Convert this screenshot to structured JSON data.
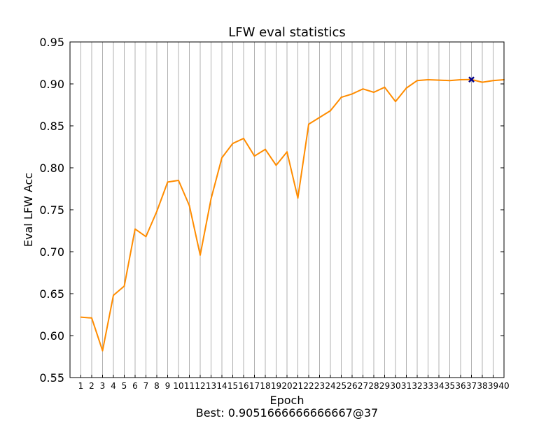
{
  "chart_data": {
    "type": "line",
    "title": "LFW eval statistics",
    "xlabel": "Epoch",
    "ylabel": "Eval LFW Acc",
    "footer": "Best: 0.9051666666666667@37",
    "xlim": [
      0,
      40
    ],
    "ylim": [
      0.55,
      0.95
    ],
    "grid": "vertical",
    "ytick_labels": [
      "0.55",
      "0.60",
      "0.65",
      "0.70",
      "0.75",
      "0.80",
      "0.85",
      "0.90",
      "0.95"
    ],
    "x": [
      1,
      2,
      3,
      4,
      5,
      6,
      7,
      8,
      9,
      10,
      11,
      12,
      13,
      14,
      15,
      16,
      17,
      18,
      19,
      20,
      21,
      22,
      23,
      24,
      25,
      26,
      27,
      28,
      29,
      30,
      31,
      32,
      33,
      34,
      35,
      36,
      37,
      38,
      39,
      40
    ],
    "series": [
      {
        "color": "#ff8c00",
        "values": [
          0.622,
          0.621,
          0.582,
          0.648,
          0.659,
          0.727,
          0.718,
          0.748,
          0.783,
          0.785,
          0.755,
          0.696,
          0.763,
          0.812,
          0.829,
          0.835,
          0.814,
          0.822,
          0.803,
          0.819,
          0.764,
          0.852,
          0.86,
          0.868,
          0.884,
          0.888,
          0.894,
          0.89,
          0.896,
          0.879,
          0.895,
          0.904,
          0.905,
          0.9045,
          0.904,
          0.905,
          0.9052,
          0.902,
          0.904,
          0.905
        ]
      }
    ],
    "best_point": {
      "x": 37,
      "y": 0.9051666666666667,
      "color": "#00008b",
      "marker": "x"
    }
  }
}
